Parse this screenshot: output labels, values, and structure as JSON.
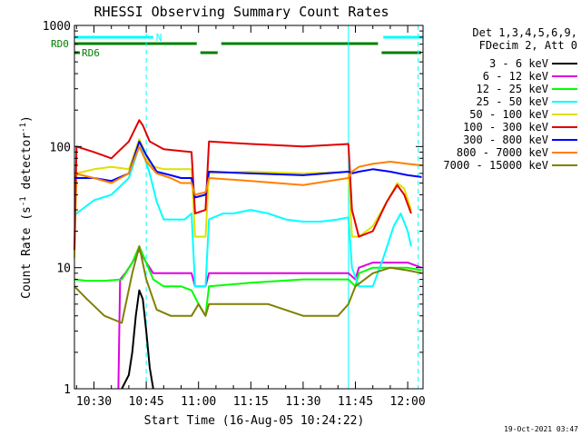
{
  "chart_data": {
    "type": "line",
    "title": "RHESSI Observing Summary Count Rates",
    "xlabel": "Start Time (16-Aug-05 10:24:22)",
    "ylabel_main": "Count Rate (s",
    "ylabel_sup1": "-1",
    "ylabel_mid": " detector",
    "ylabel_sup2": "-1",
    "ylabel_end": ")",
    "yscale": "log",
    "ylim": [
      1,
      1000
    ],
    "xlim_minutes": [
      24.4,
      124.4
    ],
    "x_ticks": [
      {
        "m": 30,
        "label": "10:30"
      },
      {
        "m": 45,
        "label": "10:45"
      },
      {
        "m": 60,
        "label": "11:00"
      },
      {
        "m": 75,
        "label": "11:15"
      },
      {
        "m": 90,
        "label": "11:30"
      },
      {
        "m": 105,
        "label": "11:45"
      },
      {
        "m": 120,
        "label": "12:00"
      }
    ],
    "y_ticks": [
      {
        "v": 1,
        "label": "1"
      },
      {
        "v": 10,
        "label": "10"
      },
      {
        "v": 100,
        "label": "100"
      },
      {
        "v": 1000,
        "label": "1000"
      }
    ],
    "legend_header": [
      "Det 1,3,4,5,6,9,",
      "FDecim 2, Att 0"
    ],
    "series": [
      {
        "name": "3 - 6 keV",
        "color": "#000000",
        "points": [
          [
            38,
            1
          ],
          [
            40,
            1.3
          ],
          [
            41,
            2
          ],
          [
            42,
            4
          ],
          [
            43,
            6.5
          ],
          [
            44,
            5.5
          ],
          [
            45,
            3
          ],
          [
            46,
            1.5
          ],
          [
            47,
            1
          ]
        ]
      },
      {
        "name": "6 - 12 keV",
        "color": "#e000e0",
        "points": [
          [
            37,
            1
          ],
          [
            37.5,
            8
          ],
          [
            39,
            9
          ],
          [
            41,
            11
          ],
          [
            43,
            14
          ],
          [
            45,
            11
          ],
          [
            47,
            9
          ],
          [
            50,
            9
          ],
          [
            55,
            9
          ],
          [
            58,
            9
          ],
          [
            59,
            7
          ],
          [
            62,
            7
          ],
          [
            63,
            9
          ],
          [
            75,
            9
          ],
          [
            90,
            9
          ],
          [
            103,
            9
          ],
          [
            105,
            8
          ],
          [
            106,
            10
          ],
          [
            110,
            11
          ],
          [
            115,
            11
          ],
          [
            120,
            11
          ],
          [
            124,
            10
          ]
        ]
      },
      {
        "name": "12 - 25 keV",
        "color": "#00ff00",
        "points": [
          [
            24.4,
            8
          ],
          [
            28,
            7.8
          ],
          [
            33,
            7.8
          ],
          [
            38,
            8
          ],
          [
            41,
            11
          ],
          [
            43,
            15
          ],
          [
            45,
            11
          ],
          [
            47,
            8
          ],
          [
            50,
            7
          ],
          [
            55,
            7
          ],
          [
            58,
            6.5
          ],
          [
            60,
            5
          ],
          [
            62,
            4
          ],
          [
            63,
            7
          ],
          [
            75,
            7.5
          ],
          [
            90,
            8
          ],
          [
            103,
            8
          ],
          [
            105,
            7
          ],
          [
            106,
            9
          ],
          [
            110,
            10
          ],
          [
            115,
            10
          ],
          [
            120,
            10
          ],
          [
            124,
            9.5
          ]
        ]
      },
      {
        "name": "25 - 50 keV",
        "color": "#00ffff",
        "points": [
          [
            24.4,
            26
          ],
          [
            25,
            28
          ],
          [
            30,
            36
          ],
          [
            35,
            40
          ],
          [
            40,
            55
          ],
          [
            43,
            100
          ],
          [
            44,
            90
          ],
          [
            46,
            60
          ],
          [
            48,
            35
          ],
          [
            50,
            25
          ],
          [
            56,
            25
          ],
          [
            58,
            28
          ],
          [
            59,
            7
          ],
          [
            62,
            7
          ],
          [
            63,
            25
          ],
          [
            67,
            28
          ],
          [
            70,
            28
          ],
          [
            75,
            30
          ],
          [
            80,
            28
          ],
          [
            85,
            25
          ],
          [
            90,
            24
          ],
          [
            95,
            24
          ],
          [
            100,
            25
          ],
          [
            103,
            26
          ],
          [
            104,
            10
          ],
          [
            106,
            7
          ],
          [
            110,
            7
          ],
          [
            113,
            12
          ],
          [
            116,
            22
          ],
          [
            118,
            28
          ],
          [
            120,
            20
          ],
          [
            121,
            15
          ]
        ]
      },
      {
        "name": "50 - 100 keV",
        "color": "#e0e000",
        "points": [
          [
            24.4,
            12
          ],
          [
            25,
            60
          ],
          [
            30,
            65
          ],
          [
            35,
            68
          ],
          [
            40,
            65
          ],
          [
            43,
            115
          ],
          [
            44,
            100
          ],
          [
            46,
            70
          ],
          [
            50,
            65
          ],
          [
            55,
            65
          ],
          [
            58,
            65
          ],
          [
            59,
            18
          ],
          [
            62,
            18
          ],
          [
            63,
            60
          ],
          [
            75,
            62
          ],
          [
            90,
            60
          ],
          [
            103,
            62
          ],
          [
            104,
            18
          ],
          [
            106,
            18
          ],
          [
            110,
            22
          ],
          [
            114,
            35
          ],
          [
            117,
            50
          ],
          [
            119,
            45
          ],
          [
            121,
            30
          ]
        ]
      },
      {
        "name": "100 - 300 keV",
        "color": "#e00000",
        "points": [
          [
            24.4,
            14
          ],
          [
            25,
            100
          ],
          [
            30,
            90
          ],
          [
            35,
            80
          ],
          [
            40,
            110
          ],
          [
            43,
            165
          ],
          [
            44,
            150
          ],
          [
            46,
            110
          ],
          [
            50,
            95
          ],
          [
            55,
            92
          ],
          [
            58,
            90
          ],
          [
            59,
            28
          ],
          [
            62,
            30
          ],
          [
            63,
            110
          ],
          [
            75,
            105
          ],
          [
            90,
            100
          ],
          [
            103,
            105
          ],
          [
            104,
            30
          ],
          [
            106,
            18
          ],
          [
            110,
            20
          ],
          [
            114,
            35
          ],
          [
            117,
            48
          ],
          [
            119,
            40
          ],
          [
            121,
            28
          ]
        ]
      },
      {
        "name": "300 - 800 keV",
        "color": "#0000ff",
        "points": [
          [
            24.4,
            55
          ],
          [
            30,
            55
          ],
          [
            35,
            52
          ],
          [
            40,
            60
          ],
          [
            43,
            110
          ],
          [
            45,
            85
          ],
          [
            48,
            62
          ],
          [
            52,
            58
          ],
          [
            55,
            55
          ],
          [
            58,
            55
          ],
          [
            59,
            38
          ],
          [
            62,
            40
          ],
          [
            63,
            62
          ],
          [
            75,
            60
          ],
          [
            90,
            58
          ],
          [
            103,
            62
          ],
          [
            104,
            60
          ],
          [
            106,
            62
          ],
          [
            110,
            65
          ],
          [
            115,
            62
          ],
          [
            120,
            58
          ],
          [
            124,
            56
          ]
        ]
      },
      {
        "name": "800 - 7000 keV",
        "color": "#ff8000",
        "points": [
          [
            24.4,
            60
          ],
          [
            30,
            55
          ],
          [
            35,
            50
          ],
          [
            40,
            60
          ],
          [
            43,
            100
          ],
          [
            45,
            75
          ],
          [
            48,
            60
          ],
          [
            52,
            55
          ],
          [
            55,
            50
          ],
          [
            58,
            50
          ],
          [
            59,
            40
          ],
          [
            62,
            42
          ],
          [
            63,
            55
          ],
          [
            75,
            52
          ],
          [
            90,
            48
          ],
          [
            103,
            55
          ],
          [
            104,
            62
          ],
          [
            106,
            68
          ],
          [
            110,
            72
          ],
          [
            115,
            75
          ],
          [
            120,
            72
          ],
          [
            124,
            70
          ]
        ]
      },
      {
        "name": "7000 - 15000 keV",
        "color": "#808000",
        "points": [
          [
            24.4,
            7
          ],
          [
            28,
            5.5
          ],
          [
            33,
            4
          ],
          [
            38,
            3.5
          ],
          [
            41,
            9
          ],
          [
            43,
            15
          ],
          [
            45,
            8
          ],
          [
            48,
            4.5
          ],
          [
            52,
            4
          ],
          [
            58,
            4
          ],
          [
            60,
            5
          ],
          [
            62,
            4
          ],
          [
            63,
            5
          ],
          [
            75,
            5
          ],
          [
            80,
            5
          ],
          [
            90,
            4
          ],
          [
            100,
            4
          ],
          [
            103,
            5
          ],
          [
            105,
            7
          ],
          [
            110,
            9
          ],
          [
            115,
            10
          ],
          [
            120,
            9.5
          ],
          [
            124,
            9
          ]
        ]
      }
    ],
    "flags": {
      "N_label": "N",
      "RD0_label": "RD0",
      "RD6_label": "RD6",
      "N_color": "#00ffff",
      "RD_color": "#008000",
      "N_segments": [
        [
          24.4,
          47
        ],
        [
          113,
          124.4
        ]
      ],
      "RD0_segments": [
        [
          24.4,
          60
        ],
        [
          60,
          66
        ],
        [
          66,
          112
        ],
        [
          112,
          124.4
        ]
      ],
      "RD6_segments": [
        [
          24.4,
          25.5
        ]
      ]
    },
    "vlines_solid": [
      24.4,
      103
    ],
    "vlines_dashed": [
      45,
      123
    ],
    "timestamp": "19-Oct-2021 03:47"
  }
}
